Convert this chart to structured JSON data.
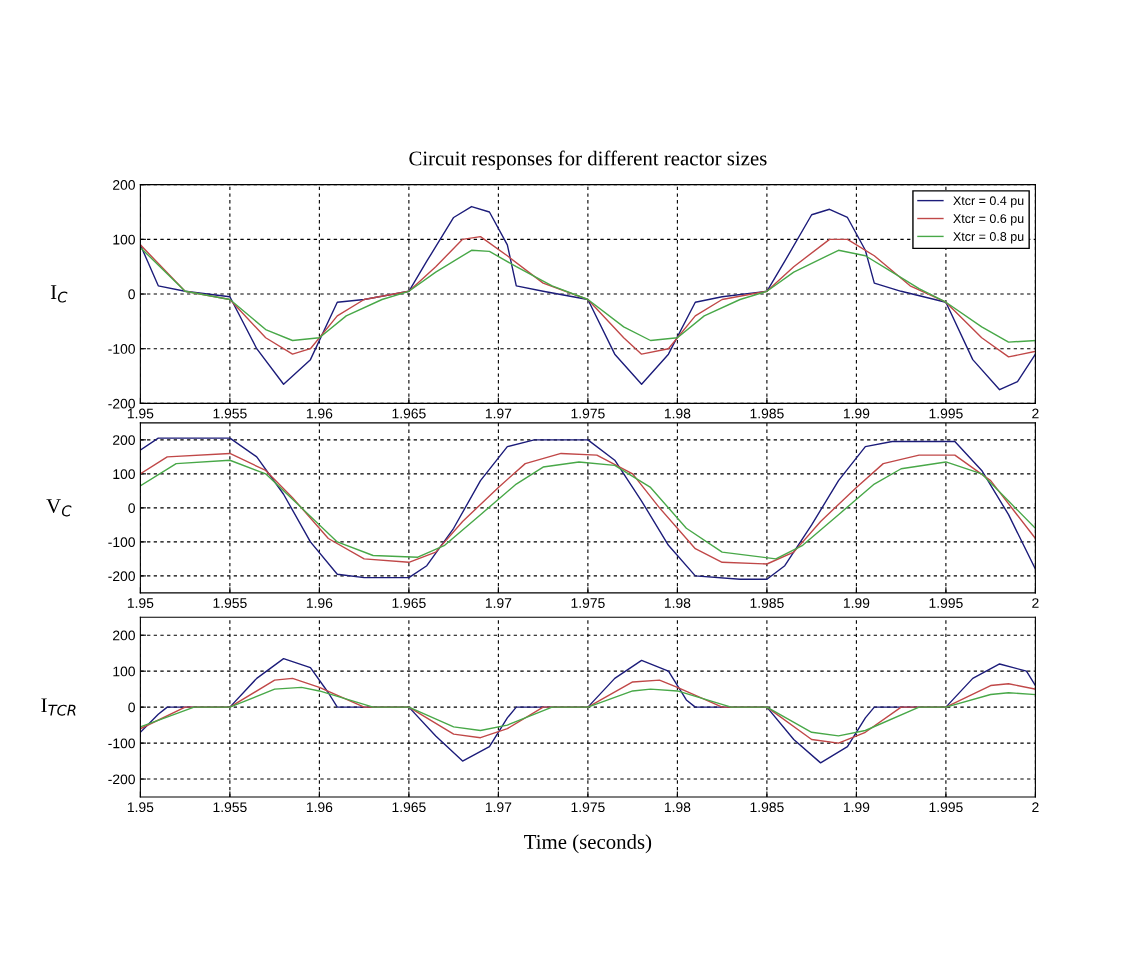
{
  "chart_data": [
    {
      "type": "line",
      "title": "Circuit responses for different reactor sizes",
      "ylabel": "I$_{C}$",
      "xlim": [
        1.95,
        2
      ],
      "xticks": [
        1.95,
        1.955,
        1.96,
        1.965,
        1.97,
        1.975,
        1.98,
        1.985,
        1.99,
        1.995,
        2
      ],
      "ylim": [
        -200,
        200
      ],
      "yticks": [
        -200,
        -100,
        0,
        100,
        200
      ],
      "grid": true,
      "legend": "top right",
      "line_style": "solid",
      "marker": "none",
      "series": [
        {
          "name": "Xtcr = 0.4 pu",
          "color": "#1c1c7a",
          "x": [
            1.95,
            1.951,
            1.9525,
            1.955,
            1.9565,
            1.958,
            1.9595,
            1.961,
            1.9625,
            1.965,
            1.966,
            1.9675,
            1.9685,
            1.9695,
            1.9705,
            1.971,
            1.9725,
            1.975,
            1.9765,
            1.978,
            1.9795,
            1.981,
            1.9825,
            1.985,
            1.986,
            1.9875,
            1.9885,
            1.9895,
            1.9905,
            1.991,
            1.9925,
            1.995,
            1.9965,
            1.998,
            1.999,
            2.0
          ],
          "values": [
            90,
            15,
            5,
            -5,
            -100,
            -165,
            -120,
            -15,
            -10,
            5,
            60,
            140,
            160,
            150,
            90,
            15,
            5,
            -10,
            -110,
            -165,
            -110,
            -15,
            -5,
            5,
            60,
            145,
            155,
            140,
            80,
            20,
            5,
            -15,
            -120,
            -175,
            -160,
            -110
          ]
        },
        {
          "name": "Xtcr = 0.6 pu",
          "color": "#c04848",
          "x": [
            1.95,
            1.9525,
            1.955,
            1.957,
            1.9585,
            1.9595,
            1.961,
            1.9625,
            1.965,
            1.9665,
            1.968,
            1.969,
            1.9705,
            1.9725,
            1.975,
            1.977,
            1.978,
            1.9795,
            1.981,
            1.9825,
            1.985,
            1.9865,
            1.9885,
            1.9895,
            1.991,
            1.993,
            1.995,
            1.997,
            1.9985,
            2.0
          ],
          "values": [
            90,
            5,
            -10,
            -80,
            -110,
            -100,
            -40,
            -10,
            5,
            50,
            100,
            105,
            70,
            20,
            -10,
            -80,
            -110,
            -100,
            -40,
            -10,
            5,
            50,
            100,
            100,
            70,
            15,
            -15,
            -80,
            -115,
            -105
          ]
        },
        {
          "name": "Xtcr = 0.8 pu",
          "color": "#48a848",
          "x": [
            1.95,
            1.9525,
            1.955,
            1.957,
            1.9585,
            1.96,
            1.9615,
            1.9635,
            1.965,
            1.9665,
            1.9685,
            1.9695,
            1.971,
            1.973,
            1.975,
            1.977,
            1.9785,
            1.98,
            1.9815,
            1.9835,
            1.985,
            1.9865,
            1.989,
            1.9905,
            1.992,
            1.9935,
            1.995,
            1.997,
            1.9985,
            2.0
          ],
          "values": [
            85,
            5,
            -10,
            -65,
            -85,
            -80,
            -40,
            -10,
            5,
            40,
            80,
            78,
            50,
            15,
            -10,
            -60,
            -85,
            -80,
            -40,
            -10,
            5,
            40,
            80,
            70,
            40,
            10,
            -15,
            -60,
            -88,
            -85
          ]
        }
      ]
    },
    {
      "type": "line",
      "ylabel": "V$_{C}$",
      "xlim": [
        1.95,
        2
      ],
      "xticks": [
        1.95,
        1.955,
        1.96,
        1.965,
        1.97,
        1.975,
        1.98,
        1.985,
        1.99,
        1.995,
        2
      ],
      "ylim": [
        -250,
        250
      ],
      "yticks": [
        -200,
        -100,
        0,
        100,
        200
      ],
      "grid": true,
      "line_style": "solid",
      "marker": "none",
      "series": [
        {
          "color": "#1c1c7a",
          "x": [
            1.95,
            1.951,
            1.955,
            1.9565,
            1.958,
            1.9595,
            1.961,
            1.9625,
            1.965,
            1.966,
            1.9675,
            1.969,
            1.9705,
            1.972,
            1.975,
            1.9765,
            1.978,
            1.9795,
            1.981,
            1.9835,
            1.985,
            1.986,
            1.9875,
            1.989,
            1.9905,
            1.992,
            1.9955,
            1.997,
            1.9985,
            2.0
          ],
          "values": [
            170,
            205,
            205,
            150,
            40,
            -100,
            -195,
            -205,
            -205,
            -170,
            -60,
            80,
            180,
            200,
            200,
            140,
            20,
            -110,
            -200,
            -210,
            -210,
            -170,
            -50,
            80,
            180,
            195,
            195,
            110,
            -20,
            -180
          ]
        },
        {
          "color": "#c04848",
          "x": [
            1.95,
            1.9515,
            1.955,
            1.957,
            1.9585,
            1.9605,
            1.9625,
            1.965,
            1.9665,
            1.968,
            1.97,
            1.9715,
            1.9735,
            1.9755,
            1.9775,
            1.979,
            1.981,
            1.9825,
            1.985,
            1.9865,
            1.988,
            1.99,
            1.9915,
            1.9935,
            1.9955,
            1.9975,
            2.0
          ],
          "values": [
            100,
            150,
            160,
            110,
            30,
            -90,
            -150,
            -160,
            -130,
            -40,
            60,
            130,
            160,
            155,
            100,
            0,
            -120,
            -160,
            -165,
            -130,
            -40,
            60,
            130,
            155,
            155,
            80,
            -90
          ]
        },
        {
          "color": "#48a848",
          "x": [
            1.95,
            1.952,
            1.955,
            1.957,
            1.959,
            1.961,
            1.963,
            1.9655,
            1.967,
            1.969,
            1.971,
            1.9725,
            1.9745,
            1.9765,
            1.9785,
            1.9805,
            1.9825,
            1.9855,
            1.987,
            1.989,
            1.991,
            1.9925,
            1.995,
            1.997,
            1.9985,
            2.0
          ],
          "values": [
            65,
            130,
            140,
            100,
            0,
            -100,
            -140,
            -145,
            -110,
            -20,
            70,
            120,
            135,
            125,
            60,
            -60,
            -130,
            -150,
            -110,
            -20,
            70,
            115,
            135,
            100,
            20,
            -60
          ]
        }
      ]
    },
    {
      "type": "line",
      "ylabel": "I$_{TCR}$",
      "xlabel": "Time (seconds)",
      "xlim": [
        1.95,
        2
      ],
      "xticks": [
        1.95,
        1.955,
        1.96,
        1.965,
        1.97,
        1.975,
        1.98,
        1.985,
        1.99,
        1.995,
        2
      ],
      "ylim": [
        -250,
        250
      ],
      "yticks": [
        -200,
        -100,
        0,
        100,
        200
      ],
      "grid": true,
      "line_style": "solid",
      "marker": "none",
      "series": [
        {
          "color": "#1c1c7a",
          "x": [
            1.95,
            1.951,
            1.9515,
            1.955,
            1.9565,
            1.958,
            1.9595,
            1.9605,
            1.961,
            1.965,
            1.9665,
            1.968,
            1.9695,
            1.9705,
            1.971,
            1.975,
            1.9765,
            1.978,
            1.9795,
            1.9805,
            1.981,
            1.985,
            1.9865,
            1.988,
            1.9895,
            1.9905,
            1.991,
            1.995,
            1.9965,
            1.998,
            1.9995,
            2.0
          ],
          "values": [
            -70,
            -20,
            0,
            0,
            80,
            135,
            110,
            40,
            0,
            0,
            -80,
            -150,
            -110,
            -30,
            0,
            0,
            80,
            130,
            100,
            20,
            0,
            0,
            -90,
            -155,
            -110,
            -30,
            0,
            0,
            80,
            120,
            100,
            60
          ]
        },
        {
          "color": "#c04848",
          "x": [
            1.95,
            1.9525,
            1.955,
            1.9575,
            1.9585,
            1.96,
            1.9625,
            1.965,
            1.9675,
            1.969,
            1.9705,
            1.9725,
            1.975,
            1.9775,
            1.979,
            1.98,
            1.9825,
            1.985,
            1.9875,
            1.989,
            1.9905,
            1.9925,
            1.995,
            1.9975,
            1.9985,
            2.0
          ],
          "values": [
            -60,
            0,
            0,
            75,
            80,
            55,
            0,
            0,
            -75,
            -85,
            -60,
            0,
            0,
            70,
            75,
            55,
            0,
            0,
            -90,
            -100,
            -70,
            0,
            0,
            60,
            65,
            50
          ]
        },
        {
          "color": "#48a848",
          "x": [
            1.95,
            1.953,
            1.955,
            1.9575,
            1.959,
            1.96,
            1.963,
            1.965,
            1.9675,
            1.969,
            1.9705,
            1.973,
            1.975,
            1.9775,
            1.9785,
            1.98,
            1.983,
            1.985,
            1.9875,
            1.989,
            1.9905,
            1.9935,
            1.995,
            1.9975,
            1.9985,
            2.0
          ],
          "values": [
            -55,
            0,
            0,
            50,
            55,
            45,
            0,
            0,
            -55,
            -65,
            -50,
            0,
            0,
            45,
            50,
            45,
            0,
            0,
            -70,
            -80,
            -65,
            0,
            0,
            35,
            40,
            35
          ]
        }
      ]
    }
  ]
}
